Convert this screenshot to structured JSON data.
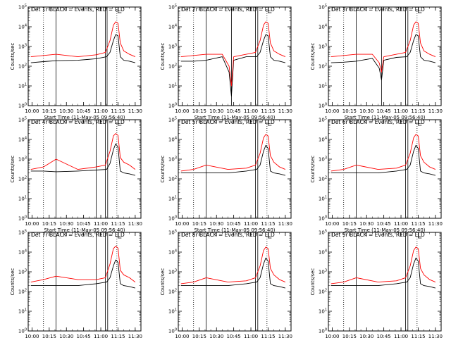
{
  "figure": {
    "background": "#ffffff",
    "colors": {
      "events": "#000000",
      "lld": "#ff0000"
    }
  },
  "chart_data": [
    {
      "type": "line",
      "title": "Det 1r BLACK = Events, RED = LLD",
      "xlabel": "Start Time (11-May-05 09:56:40)",
      "ylabel": "Counts/sec",
      "xticks": [
        "10:00",
        "10:15",
        "10:30",
        "10:45",
        "11:00",
        "11:15",
        "11:30"
      ],
      "yticks": [
        "10^0",
        "10^1",
        "10^2",
        "10^3",
        "10^4",
        "10^5"
      ],
      "xlim": [
        "09:56:40",
        "11:35"
      ],
      "ylim": [
        1,
        100000
      ],
      "yscale": "log",
      "dotted_lines": [
        "10:10",
        "11:14"
      ],
      "solid_lines": [
        "10:21",
        "10:56",
        "11:04",
        "11:05:30"
      ],
      "series": [
        {
          "color": "#000000",
          "x": [
            "09:59",
            "10:10",
            "10:21",
            "10:40",
            "10:56",
            "11:05",
            "11:08",
            "11:11",
            "11:13",
            "11:15",
            "11:17",
            "11:20",
            "11:25",
            "11:30"
          ],
          "y": [
            150,
            170,
            190,
            200,
            240,
            300,
            500,
            2000,
            4000,
            3500,
            300,
            200,
            180,
            150
          ]
        },
        {
          "color": "#ff0000",
          "x": [
            "09:59",
            "10:10",
            "10:21",
            "10:40",
            "10:56",
            "11:04",
            "11:08",
            "11:11",
            "11:13",
            "11:15",
            "11:17",
            "11:20",
            "11:25",
            "11:30"
          ],
          "y": [
            300,
            350,
            400,
            300,
            380,
            500,
            2000,
            12000,
            18000,
            15000,
            1500,
            600,
            400,
            300
          ]
        }
      ]
    },
    {
      "type": "line",
      "title": "Det 2r BLACK = Events, RED = LLD",
      "xlabel": "Start Time (11-May-05 09:56:40)",
      "ylabel": "Counts/sec",
      "xticks": [
        "10:00",
        "10:15",
        "10:30",
        "10:45",
        "11:00",
        "11:15",
        "11:30"
      ],
      "yticks": [
        "10^0",
        "10^1",
        "10^2",
        "10^3",
        "10^4",
        "10^5"
      ],
      "xlim": [
        "09:56:40",
        "11:35"
      ],
      "ylim": [
        1,
        100000
      ],
      "yscale": "log",
      "dotted_lines": [
        "10:10",
        "11:14"
      ],
      "solid_lines": [
        "10:21",
        "10:43",
        "11:04",
        "11:06"
      ],
      "series": [
        {
          "color": "#000000",
          "x": [
            "09:59",
            "10:10",
            "10:21",
            "10:35",
            "10:41",
            "10:43",
            "10:45",
            "10:56",
            "11:05",
            "11:08",
            "11:11",
            "11:13",
            "11:15",
            "11:17",
            "11:20",
            "11:25",
            "11:30"
          ],
          "y": [
            180,
            180,
            200,
            300,
            50,
            3,
            200,
            300,
            300,
            500,
            2000,
            4000,
            3500,
            300,
            200,
            180,
            150
          ]
        },
        {
          "color": "#ff0000",
          "x": [
            "09:59",
            "10:10",
            "10:21",
            "10:35",
            "10:41",
            "10:43",
            "10:45",
            "10:56",
            "11:04",
            "11:08",
            "11:11",
            "11:13",
            "11:15",
            "11:17",
            "11:20",
            "11:25",
            "11:30"
          ],
          "y": [
            300,
            350,
            400,
            400,
            100,
            10,
            300,
            400,
            500,
            2000,
            12000,
            18000,
            15000,
            1500,
            600,
            400,
            300
          ]
        }
      ]
    },
    {
      "type": "line",
      "title": "Det 3r BLACK = Events, RED = LLD",
      "xlabel": "Start Time (11-May-05 09:56:40)",
      "ylabel": "Counts/sec",
      "xticks": [
        "10:00",
        "10:15",
        "10:30",
        "10:45",
        "11:00",
        "11:15",
        "11:30"
      ],
      "yticks": [
        "10^0",
        "10^1",
        "10^2",
        "10^3",
        "10^4",
        "10^5"
      ],
      "xlim": [
        "09:56:40",
        "11:35"
      ],
      "ylim": [
        1,
        100000
      ],
      "yscale": "log",
      "dotted_lines": [
        "10:10",
        "11:14"
      ],
      "solid_lines": [
        "10:21",
        "10:43",
        "11:04",
        "11:06"
      ],
      "series": [
        {
          "color": "#000000",
          "x": [
            "09:59",
            "10:10",
            "10:21",
            "10:35",
            "10:41",
            "10:43",
            "10:45",
            "10:56",
            "11:05",
            "11:08",
            "11:11",
            "11:13",
            "11:15",
            "11:17",
            "11:20",
            "11:25",
            "11:30"
          ],
          "y": [
            150,
            160,
            180,
            250,
            80,
            20,
            200,
            280,
            300,
            500,
            2000,
            4000,
            3500,
            300,
            200,
            180,
            150
          ]
        },
        {
          "color": "#ff0000",
          "x": [
            "09:59",
            "10:10",
            "10:21",
            "10:35",
            "10:41",
            "10:43",
            "10:45",
            "10:56",
            "11:04",
            "11:08",
            "11:11",
            "11:13",
            "11:15",
            "11:17",
            "11:20",
            "11:25",
            "11:30"
          ],
          "y": [
            300,
            350,
            400,
            400,
            150,
            50,
            300,
            400,
            500,
            2000,
            12000,
            18000,
            15000,
            1500,
            600,
            400,
            300
          ]
        }
      ]
    },
    {
      "type": "line",
      "title": "Det 4r BLACK = Events, RED = LLD",
      "xlabel": "Start Time (11-May-05 09:56:40)",
      "ylabel": "Counts/sec",
      "xticks": [
        "10:00",
        "10:15",
        "10:30",
        "10:45",
        "11:00",
        "11:15",
        "11:30"
      ],
      "yticks": [
        "10^0",
        "10^1",
        "10^2",
        "10^3",
        "10^4",
        "10^5"
      ],
      "xlim": [
        "09:56:40",
        "11:35"
      ],
      "ylim": [
        1,
        100000
      ],
      "yscale": "log",
      "dotted_lines": [
        "10:10",
        "11:14"
      ],
      "solid_lines": [
        "10:21",
        "10:56",
        "11:04",
        "11:06"
      ],
      "series": [
        {
          "color": "#000000",
          "x": [
            "09:59",
            "10:10",
            "10:21",
            "10:40",
            "10:56",
            "11:05",
            "11:08",
            "11:11",
            "11:13",
            "11:15",
            "11:17",
            "11:20",
            "11:25",
            "11:30"
          ],
          "y": [
            250,
            250,
            230,
            250,
            280,
            300,
            600,
            3000,
            6000,
            4000,
            250,
            200,
            180,
            150
          ]
        },
        {
          "color": "#ff0000",
          "x": [
            "09:59",
            "10:10",
            "10:21",
            "10:40",
            "10:56",
            "11:04",
            "11:08",
            "11:11",
            "11:13",
            "11:15",
            "11:17",
            "11:20",
            "11:25",
            "11:30"
          ],
          "y": [
            300,
            400,
            1000,
            300,
            400,
            500,
            2500,
            15000,
            20000,
            16000,
            1200,
            700,
            500,
            300
          ]
        }
      ]
    },
    {
      "type": "line",
      "title": "Det 5r BLACK = Events, RED = LLD",
      "xlabel": "Start Time (11-May-05 09:56:40)",
      "ylabel": "Counts/sec",
      "xticks": [
        "10:00",
        "10:15",
        "10:30",
        "10:45",
        "11:00",
        "11:15",
        "11:30"
      ],
      "yticks": [
        "10^0",
        "10^1",
        "10^2",
        "10^3",
        "10^4",
        "10^5"
      ],
      "xlim": [
        "09:56:40",
        "11:35"
      ],
      "ylim": [
        1,
        100000
      ],
      "yscale": "log",
      "dotted_lines": [
        "10:10",
        "11:14"
      ],
      "solid_lines": [
        "10:21",
        "11:04",
        "11:06"
      ],
      "series": [
        {
          "color": "#000000",
          "x": [
            "09:59",
            "10:10",
            "10:21",
            "10:40",
            "10:56",
            "11:05",
            "11:08",
            "11:11",
            "11:13",
            "11:15",
            "11:17",
            "11:20",
            "11:25",
            "11:30"
          ],
          "y": [
            200,
            200,
            200,
            200,
            250,
            300,
            500,
            2500,
            5000,
            3500,
            250,
            200,
            180,
            150
          ]
        },
        {
          "color": "#ff0000",
          "x": [
            "09:59",
            "10:10",
            "10:21",
            "10:40",
            "10:56",
            "11:04",
            "11:08",
            "11:11",
            "11:13",
            "11:15",
            "11:17",
            "11:20",
            "11:25",
            "11:30"
          ],
          "y": [
            250,
            300,
            500,
            300,
            350,
            500,
            2000,
            12000,
            18000,
            15000,
            1500,
            700,
            400,
            300
          ]
        }
      ]
    },
    {
      "type": "line",
      "title": "Det 6r BLACK = Events, RED = LLD",
      "xlabel": "Start Time (11-May-05 09:56:40)",
      "ylabel": "Counts/sec",
      "xticks": [
        "10:00",
        "10:15",
        "10:30",
        "10:45",
        "11:00",
        "11:15",
        "11:30"
      ],
      "yticks": [
        "10^0",
        "10^1",
        "10^2",
        "10^3",
        "10^4",
        "10^5"
      ],
      "xlim": [
        "09:56:40",
        "11:35"
      ],
      "ylim": [
        1,
        100000
      ],
      "yscale": "log",
      "dotted_lines": [
        "10:10",
        "11:14"
      ],
      "solid_lines": [
        "10:21",
        "11:04",
        "11:06"
      ],
      "series": [
        {
          "color": "#000000",
          "x": [
            "09:59",
            "10:10",
            "10:21",
            "10:40",
            "10:56",
            "11:05",
            "11:08",
            "11:11",
            "11:13",
            "11:15",
            "11:17",
            "11:20",
            "11:25",
            "11:30"
          ],
          "y": [
            200,
            200,
            200,
            200,
            250,
            300,
            500,
            2500,
            5000,
            3500,
            250,
            200,
            180,
            150
          ]
        },
        {
          "color": "#ff0000",
          "x": [
            "09:59",
            "10:10",
            "10:21",
            "10:40",
            "10:56",
            "11:04",
            "11:08",
            "11:11",
            "11:13",
            "11:15",
            "11:17",
            "11:20",
            "11:25",
            "11:30"
          ],
          "y": [
            250,
            300,
            500,
            300,
            350,
            500,
            2000,
            12000,
            18000,
            15000,
            1500,
            700,
            400,
            300
          ]
        }
      ]
    },
    {
      "type": "line",
      "title": "Det 7r BLACK = Events, RED = LLD",
      "xlabel": "Start Time (11-May-05 09:56:40)",
      "ylabel": "Counts/sec",
      "xticks": [
        "10:00",
        "10:15",
        "10:30",
        "10:45",
        "11:00",
        "11:15",
        "11:30"
      ],
      "yticks": [
        "10^0",
        "10^1",
        "10^2",
        "10^3",
        "10^4",
        "10^5"
      ],
      "xlim": [
        "09:56:40",
        "11:35"
      ],
      "ylim": [
        1,
        100000
      ],
      "yscale": "log",
      "dotted_lines": [
        "10:10",
        "11:14"
      ],
      "solid_lines": [
        "10:21",
        "10:56",
        "11:04",
        "11:06"
      ],
      "series": [
        {
          "color": "#000000",
          "x": [
            "09:59",
            "10:10",
            "10:21",
            "10:40",
            "10:56",
            "11:05",
            "11:08",
            "11:11",
            "11:13",
            "11:15",
            "11:17",
            "11:20",
            "11:25",
            "11:30"
          ],
          "y": [
            200,
            200,
            200,
            200,
            250,
            300,
            500,
            2000,
            4000,
            3000,
            250,
            200,
            180,
            150
          ]
        },
        {
          "color": "#ff0000",
          "x": [
            "09:59",
            "10:10",
            "10:21",
            "10:40",
            "10:56",
            "11:04",
            "11:08",
            "11:11",
            "11:13",
            "11:15",
            "11:17",
            "11:20",
            "11:25",
            "11:30"
          ],
          "y": [
            300,
            400,
            600,
            400,
            400,
            500,
            2500,
            15000,
            20000,
            16000,
            1200,
            700,
            500,
            300
          ]
        }
      ]
    },
    {
      "type": "line",
      "title": "Det 8r BLACK = Events, RED = LLD",
      "xlabel": "Start Time (11-May-05 09:56:40)",
      "ylabel": "Counts/sec",
      "xticks": [
        "10:00",
        "10:15",
        "10:30",
        "10:45",
        "11:00",
        "11:15",
        "11:30"
      ],
      "yticks": [
        "10^0",
        "10^1",
        "10^2",
        "10^3",
        "10^4",
        "10^5"
      ],
      "xlim": [
        "09:56:40",
        "11:35"
      ],
      "ylim": [
        1,
        100000
      ],
      "yscale": "log",
      "dotted_lines": [
        "10:10",
        "11:14"
      ],
      "solid_lines": [
        "10:21",
        "11:04",
        "11:06"
      ],
      "series": [
        {
          "color": "#000000",
          "x": [
            "09:59",
            "10:10",
            "10:21",
            "10:40",
            "10:56",
            "11:05",
            "11:08",
            "11:11",
            "11:13",
            "11:15",
            "11:17",
            "11:20",
            "11:25",
            "11:30"
          ],
          "y": [
            200,
            200,
            200,
            200,
            250,
            300,
            500,
            2500,
            5000,
            3500,
            250,
            200,
            180,
            150
          ]
        },
        {
          "color": "#ff0000",
          "x": [
            "09:59",
            "10:10",
            "10:21",
            "10:40",
            "10:56",
            "11:04",
            "11:08",
            "11:11",
            "11:13",
            "11:15",
            "11:17",
            "11:20",
            "11:25",
            "11:30"
          ],
          "y": [
            250,
            300,
            500,
            300,
            350,
            500,
            2000,
            12000,
            18000,
            15000,
            1500,
            700,
            400,
            300
          ]
        }
      ]
    },
    {
      "type": "line",
      "title": "Det 9r BLACK = Events, RED = LLD",
      "xlabel": "Start Time (11-May-05 09:56:40)",
      "ylabel": "Counts/sec",
      "xticks": [
        "10:00",
        "10:15",
        "10:30",
        "10:45",
        "11:00",
        "11:15",
        "11:30"
      ],
      "yticks": [
        "10^0",
        "10^1",
        "10^2",
        "10^3",
        "10^4",
        "10^5"
      ],
      "xlim": [
        "09:56:40",
        "11:35"
      ],
      "ylim": [
        1,
        100000
      ],
      "yscale": "log",
      "dotted_lines": [
        "10:10",
        "11:14"
      ],
      "solid_lines": [
        "10:21",
        "11:04",
        "11:06"
      ],
      "series": [
        {
          "color": "#000000",
          "x": [
            "09:59",
            "10:10",
            "10:21",
            "10:40",
            "10:56",
            "11:05",
            "11:08",
            "11:11",
            "11:13",
            "11:15",
            "11:17",
            "11:20",
            "11:25",
            "11:30"
          ],
          "y": [
            200,
            200,
            200,
            200,
            250,
            300,
            500,
            2500,
            5000,
            3500,
            250,
            200,
            180,
            150
          ]
        },
        {
          "color": "#ff0000",
          "x": [
            "09:59",
            "10:10",
            "10:21",
            "10:40",
            "10:56",
            "11:04",
            "11:08",
            "11:11",
            "11:13",
            "11:15",
            "11:17",
            "11:20",
            "11:25",
            "11:30"
          ],
          "y": [
            250,
            300,
            500,
            300,
            350,
            500,
            2000,
            12000,
            18000,
            15000,
            1500,
            700,
            400,
            300
          ]
        }
      ]
    }
  ]
}
